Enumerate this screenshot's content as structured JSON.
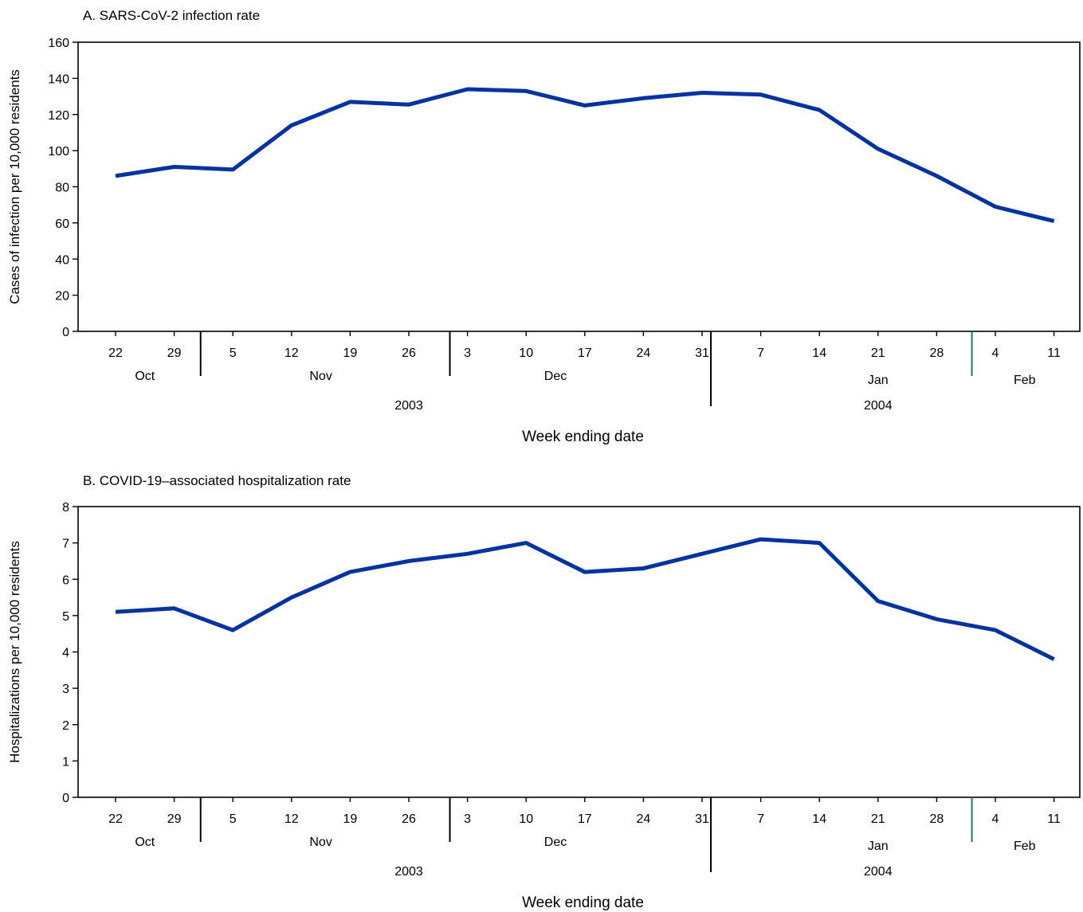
{
  "chart_data": [
    {
      "type": "line",
      "title": "A. SARS-CoV-2 infection rate",
      "xlabel": "Week ending date",
      "ylabel": "Cases of infection per 10,000 residents",
      "ylim": [
        0,
        160
      ],
      "yticks": [
        0,
        20,
        40,
        60,
        80,
        100,
        120,
        140,
        160
      ],
      "grid": false,
      "categories": [
        "22",
        "29",
        "5",
        "12",
        "19",
        "26",
        "3",
        "10",
        "17",
        "24",
        "31",
        "7",
        "14",
        "21",
        "28",
        "4",
        "11"
      ],
      "months": [
        {
          "label": "Oct",
          "center": 0.5
        },
        {
          "label": "Nov",
          "center": 3.5
        },
        {
          "label": "Dec",
          "center": 7.5
        },
        {
          "label": "Jan",
          "center": 13
        },
        {
          "label": "Feb",
          "center": 15.5
        }
      ],
      "month_dividers": [
        1.45,
        5.7,
        10.15,
        14.6
      ],
      "years": [
        {
          "label": "2003",
          "center": 5
        },
        {
          "label": "2004",
          "center": 13
        }
      ],
      "year_divider": 10.15,
      "values": [
        86,
        91,
        89.5,
        114,
        127,
        125.5,
        134,
        133,
        125,
        129,
        132,
        131,
        122.5,
        101,
        86,
        69,
        61
      ],
      "line_color": "#0033a0",
      "feb_divider_color": "#1a7a5a"
    },
    {
      "type": "line",
      "title": "B. COVID-19–associated hospitalization rate",
      "xlabel": "Week ending date",
      "ylabel": "Hospitalizations per 10,000 residents",
      "ylim": [
        0,
        8
      ],
      "yticks": [
        0,
        1,
        2,
        3,
        4,
        5,
        6,
        7,
        8
      ],
      "grid": false,
      "categories": [
        "22",
        "29",
        "5",
        "12",
        "19",
        "26",
        "3",
        "10",
        "17",
        "24",
        "31",
        "7",
        "14",
        "21",
        "28",
        "4",
        "11"
      ],
      "months": [
        {
          "label": "Oct",
          "center": 0.5
        },
        {
          "label": "Nov",
          "center": 3.5
        },
        {
          "label": "Dec",
          "center": 7.5
        },
        {
          "label": "Jan",
          "center": 13
        },
        {
          "label": "Feb",
          "center": 15.5
        }
      ],
      "month_dividers": [
        1.45,
        5.7,
        10.15,
        14.6
      ],
      "years": [
        {
          "label": "2003",
          "center": 5
        },
        {
          "label": "2004",
          "center": 13
        }
      ],
      "year_divider": 10.15,
      "values": [
        5.1,
        5.2,
        4.6,
        5.5,
        6.2,
        6.5,
        6.7,
        7.0,
        6.2,
        6.3,
        6.7,
        7.1,
        7.0,
        5.4,
        4.9,
        4.6,
        3.8
      ],
      "line_color": "#0033a0",
      "feb_divider_color": "#1a7a5a"
    }
  ]
}
